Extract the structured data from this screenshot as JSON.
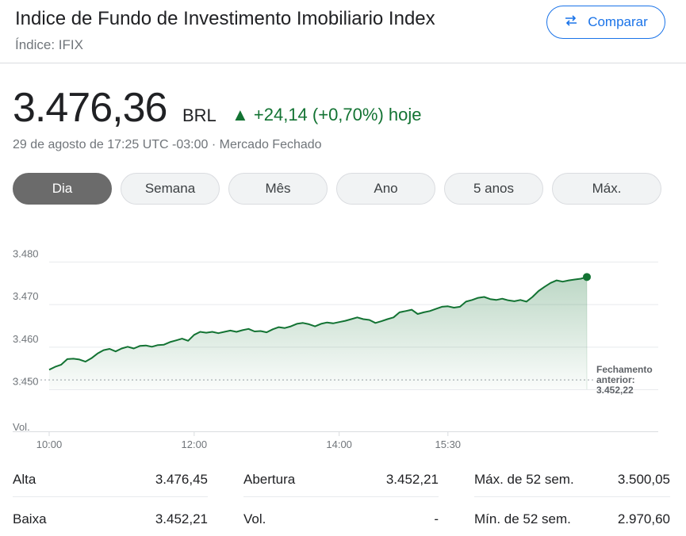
{
  "header": {
    "title": "Indice de Fundo de Investimento Imobiliario Index",
    "subtitle": "Índice: IFIX",
    "compare_label": "Comparar"
  },
  "quote": {
    "price": "3.476,36",
    "currency": "BRL",
    "change": "▲ +24,14 (+0,70%) hoje",
    "timestamp": "29 de agosto de 17:25 UTC -03:00 · Mercado Fechado",
    "change_color": "#137333"
  },
  "tabs": [
    {
      "label": "Dia",
      "active": true
    },
    {
      "label": "Semana",
      "active": false
    },
    {
      "label": "Mês",
      "active": false
    },
    {
      "label": "Ano",
      "active": false
    },
    {
      "label": "5 anos",
      "active": false
    },
    {
      "label": "Máx.",
      "active": false
    }
  ],
  "chart_data": {
    "type": "area",
    "x_tick_labels": [
      "10:00",
      "12:00",
      "14:00",
      "15:30"
    ],
    "y_tick_labels": [
      "3.480",
      "3.470",
      "3.460",
      "3.450"
    ],
    "ylim": [
      3450,
      3480
    ],
    "volume_label": "Vol.",
    "previous_close_label": [
      "Fechamento",
      "anterior:",
      "3.452,22"
    ],
    "previous_close": 3452.22,
    "line_color": "#137333",
    "series": [
      {
        "x": [
          "10:00",
          "10:05",
          "10:10",
          "10:15",
          "10:20",
          "10:25",
          "10:30",
          "10:35",
          "10:40",
          "10:45",
          "10:50",
          "10:55",
          "11:00",
          "11:05",
          "11:10",
          "11:15",
          "11:20",
          "11:25",
          "11:30",
          "11:35",
          "11:40",
          "11:45",
          "11:50",
          "11:55",
          "12:00",
          "12:05",
          "12:10",
          "12:15",
          "12:20",
          "12:25",
          "12:30",
          "12:35",
          "12:40",
          "12:45",
          "12:50",
          "12:55",
          "13:00",
          "13:05",
          "13:10",
          "13:15",
          "13:20",
          "13:25",
          "13:30",
          "13:35",
          "13:40",
          "13:45",
          "13:50",
          "13:55",
          "14:00",
          "14:05",
          "14:10",
          "14:15",
          "14:20",
          "14:25",
          "14:30",
          "14:35",
          "14:40",
          "14:45",
          "14:50",
          "14:55",
          "15:00",
          "15:05",
          "15:10",
          "15:15",
          "15:20",
          "15:25",
          "15:30",
          "15:35",
          "15:40",
          "15:45",
          "15:50",
          "15:55",
          "16:00",
          "16:05",
          "16:10",
          "16:15",
          "16:20",
          "16:25",
          "16:30",
          "16:35",
          "16:40",
          "16:45",
          "16:50",
          "16:55",
          "17:00",
          "17:05",
          "17:10",
          "17:15",
          "17:20",
          "17:25"
        ],
        "values": [
          3454.6,
          3455.3,
          3455.8,
          3457.1,
          3457.2,
          3457.0,
          3456.5,
          3457.3,
          3458.4,
          3459.2,
          3459.5,
          3458.9,
          3459.6,
          3460.0,
          3459.6,
          3460.2,
          3460.3,
          3460.0,
          3460.4,
          3460.5,
          3461.1,
          3461.5,
          3461.9,
          3461.4,
          3462.8,
          3463.5,
          3463.3,
          3463.5,
          3463.2,
          3463.5,
          3463.8,
          3463.5,
          3463.9,
          3464.2,
          3463.6,
          3463.7,
          3463.4,
          3464.1,
          3464.6,
          3464.4,
          3464.8,
          3465.4,
          3465.6,
          3465.3,
          3464.8,
          3465.4,
          3465.7,
          3465.5,
          3465.8,
          3466.1,
          3466.5,
          3466.9,
          3466.5,
          3466.3,
          3465.6,
          3466.0,
          3466.5,
          3466.9,
          3468.1,
          3468.4,
          3468.7,
          3467.7,
          3468.1,
          3468.4,
          3468.9,
          3469.4,
          3469.5,
          3469.2,
          3469.4,
          3470.6,
          3471.0,
          3471.5,
          3471.7,
          3471.2,
          3471.0,
          3471.3,
          3470.9,
          3470.7,
          3471.0,
          3470.6,
          3471.7,
          3473.1,
          3474.1,
          3475.0,
          3475.6,
          3475.3,
          3475.6,
          3475.8,
          3476.0,
          3476.4
        ]
      }
    ]
  },
  "stats": [
    {
      "label": "Alta",
      "value": "3.476,45"
    },
    {
      "label": "Abertura",
      "value": "3.452,21"
    },
    {
      "label": "Máx. de 52 sem.",
      "value": "3.500,05"
    },
    {
      "label": "Baixa",
      "value": "3.452,21"
    },
    {
      "label": "Vol.",
      "value": "-"
    },
    {
      "label": "Mín. de 52 sem.",
      "value": "2.970,60"
    }
  ]
}
